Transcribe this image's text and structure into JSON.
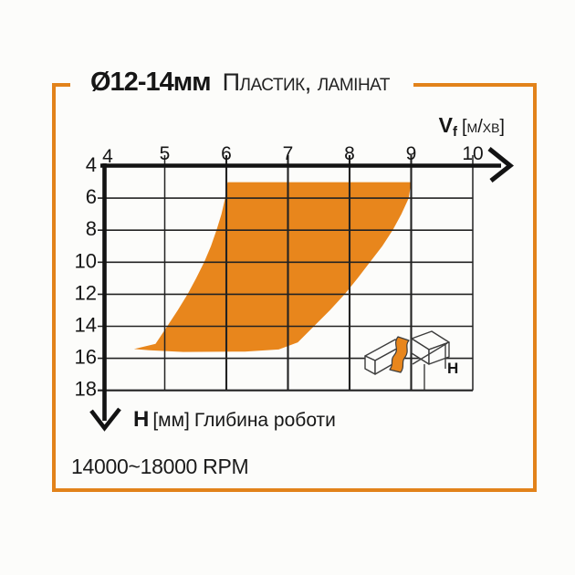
{
  "page": {
    "background": "#fcfcfa",
    "accent_orange": "#e2821a"
  },
  "header": {
    "diameter": "Ø12-14мм",
    "material": "Пластик, ламінат"
  },
  "footer": {
    "rpm": "14000~18000 RPM"
  },
  "chart_data": {
    "type": "area",
    "title": "",
    "x_axis": {
      "symbol": "V",
      "symbol_sub": "f",
      "units": "[м/хв]",
      "min": 4,
      "max": 10,
      "ticks": [
        4,
        5,
        6,
        7,
        8,
        9,
        10
      ],
      "emphasized_gridlines": [
        6,
        7,
        8,
        9
      ],
      "direction": "right"
    },
    "y_axis": {
      "symbol": "H",
      "units": "[мм]",
      "title": "Глибина роботи",
      "min": 4,
      "max": 18,
      "ticks": [
        4,
        6,
        8,
        10,
        12,
        14,
        16,
        18
      ],
      "direction": "down"
    },
    "series": [
      {
        "name": "recommended-operating-range",
        "type": "filled-band",
        "color": "#e8861c",
        "outline_vf_h": [
          [
            6.02,
            5.0
          ],
          [
            9.0,
            5.0
          ],
          [
            8.96,
            6
          ],
          [
            8.84,
            7
          ],
          [
            8.7,
            8
          ],
          [
            8.53,
            9
          ],
          [
            8.33,
            10
          ],
          [
            8.13,
            11
          ],
          [
            7.92,
            12
          ],
          [
            7.68,
            13
          ],
          [
            7.42,
            14
          ],
          [
            7.16,
            15
          ],
          [
            6.85,
            15.45
          ],
          [
            6.3,
            15.58
          ],
          [
            5.3,
            15.6
          ],
          [
            4.75,
            15.5
          ],
          [
            4.5,
            15.42
          ],
          [
            4.85,
            15.1
          ],
          [
            5.04,
            14
          ],
          [
            5.21,
            13
          ],
          [
            5.37,
            12
          ],
          [
            5.51,
            11
          ],
          [
            5.64,
            10
          ],
          [
            5.75,
            9
          ],
          [
            5.84,
            8
          ],
          [
            5.92,
            7
          ],
          [
            5.98,
            6
          ]
        ]
      }
    ],
    "icon_label": "H"
  }
}
